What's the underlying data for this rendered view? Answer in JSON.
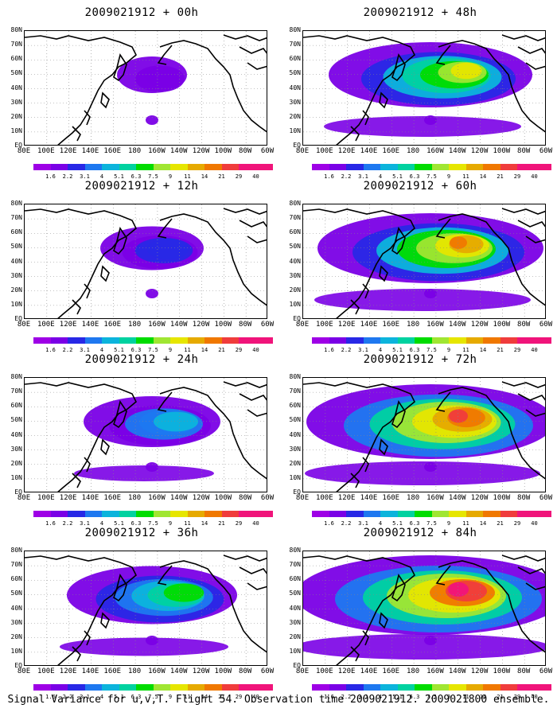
{
  "panels": [
    {
      "title": "2009021912 + 00h",
      "intensity": 0.1
    },
    {
      "title": "2009021912 + 12h",
      "intensity": 0.25
    },
    {
      "title": "2009021912 + 24h",
      "intensity": 0.4
    },
    {
      "title": "2009021912 + 36h",
      "intensity": 0.55
    },
    {
      "title": "2009021912 + 48h",
      "intensity": 0.7
    },
    {
      "title": "2009021912 + 60h",
      "intensity": 0.8
    },
    {
      "title": "2009021912 + 72h",
      "intensity": 0.9
    },
    {
      "title": "2009021912 + 84h",
      "intensity": 1.0
    }
  ],
  "lat_labels": [
    "80N",
    "70N",
    "60N",
    "50N",
    "40N",
    "30N",
    "20N",
    "10N",
    "EQ"
  ],
  "lon_labels": [
    "80E",
    "100E",
    "120E",
    "140E",
    "160E",
    "180",
    "160W",
    "140W",
    "120W",
    "100W",
    "80W",
    "60W"
  ],
  "colorbar": {
    "labels": [
      "1.6",
      "2.2",
      "3.1",
      "4",
      "5.1",
      "6.3",
      "7.5",
      "9",
      "11",
      "14",
      "21",
      "29",
      "40"
    ],
    "colors": [
      "#9e00e6",
      "#7a00e6",
      "#2828e6",
      "#1e78f0",
      "#0cb4dc",
      "#00d2a0",
      "#00dc00",
      "#a0e632",
      "#e6e600",
      "#e6aa00",
      "#f07800",
      "#f03c3c",
      "#f0147a"
    ]
  },
  "caption": "Signal Variance for u,v,T. Flight 54. Observation time 2009021912. 2009021800 ensemble."
}
